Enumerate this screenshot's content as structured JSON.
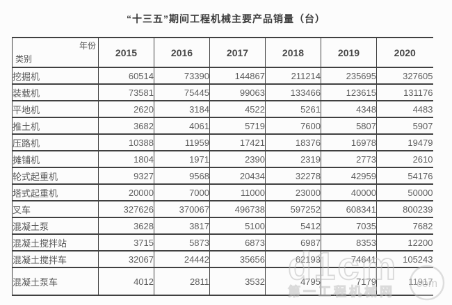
{
  "page": {
    "title": "“十三五”期间工程机械主要产品销量（台）"
  },
  "chart_data": {
    "type": "table",
    "title": "“十三五”期间工程机械主要产品销量（台）",
    "col_header_label": "年份",
    "row_header_label": "类别",
    "columns": [
      "2015",
      "2016",
      "2017",
      "2018",
      "2019",
      "2020"
    ],
    "rows": [
      {
        "category": "挖掘机",
        "values": [
          60514,
          73390,
          144867,
          211214,
          235695,
          327605
        ]
      },
      {
        "category": "装载机",
        "values": [
          73581,
          75445,
          99063,
          133466,
          123615,
          131176
        ]
      },
      {
        "category": "平地机",
        "values": [
          2620,
          3184,
          4522,
          5261,
          4348,
          4483
        ]
      },
      {
        "category": "推土机",
        "values": [
          3682,
          4061,
          5719,
          7600,
          5807,
          5907
        ]
      },
      {
        "category": "压路机",
        "values": [
          10388,
          11959,
          17421,
          18376,
          16978,
          19479
        ]
      },
      {
        "category": "摊铺机",
        "values": [
          1804,
          1971,
          2390,
          2319,
          2773,
          2610
        ]
      },
      {
        "category": "轮式起重机",
        "values": [
          9327,
          9568,
          20434,
          32278,
          42959,
          54176
        ]
      },
      {
        "category": "塔式起重机",
        "values": [
          20000,
          7000,
          11000,
          23000,
          40000,
          50000
        ]
      },
      {
        "category": "叉车",
        "values": [
          327626,
          370067,
          496738,
          597252,
          608341,
          800239
        ]
      },
      {
        "category": "混凝土泵",
        "values": [
          3628,
          3817,
          5100,
          5412,
          7035,
          7682
        ]
      },
      {
        "category": "混凝土搅拌站",
        "values": [
          3715,
          5873,
          6873,
          6987,
          8353,
          12200
        ]
      },
      {
        "category": "混凝土搅拌车",
        "values": [
          32067,
          24442,
          35656,
          62193,
          74641,
          105243
        ]
      },
      {
        "category": "混凝土泵车",
        "values": [
          4012,
          2811,
          3532,
          4795,
          7179,
          11917
        ]
      }
    ]
  },
  "watermark": {
    "logo_text": "d1cm",
    "site_name": "第一工程机械网",
    "tld_label": "com"
  },
  "colors": {
    "border": "#404040",
    "text": "#5d5d5d",
    "header_text": "#474747",
    "title_text": "#3c3c3c",
    "watermark_gray": "#bdbdbd"
  }
}
